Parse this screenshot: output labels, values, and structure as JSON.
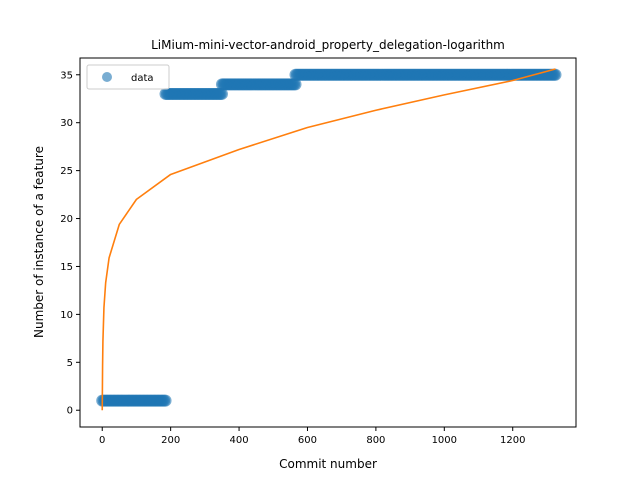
{
  "chart_data": {
    "type": "scatter",
    "title": "LiMium-mini-vector-android_property_delegation-logarithm",
    "xlabel": "Commit number",
    "ylabel": "Number of instance of a feature",
    "xlim": [
      -65,
      1385
    ],
    "ylim": [
      -1.75,
      36.75
    ],
    "xticks": [
      0,
      200,
      400,
      600,
      800,
      1000,
      1200
    ],
    "yticks": [
      0,
      5,
      10,
      15,
      20,
      25,
      30,
      35
    ],
    "grid": false,
    "legend": {
      "position": "top-left",
      "entries": [
        "data"
      ]
    },
    "colors": {
      "data": "#1f77b4",
      "fit": "#ff7f0e"
    },
    "series": [
      {
        "name": "data",
        "kind": "scatter",
        "segments": [
          {
            "x_start": 0,
            "x_end": 185,
            "y": 1
          },
          {
            "x_start": 185,
            "x_end": 350,
            "y": 33
          },
          {
            "x_start": 350,
            "x_end": 565,
            "y": 34
          },
          {
            "x_start": 565,
            "x_end": 1325,
            "y": 35
          }
        ]
      },
      {
        "kind": "line",
        "model": "logarithmic",
        "points": [
          [
            0,
            0
          ],
          [
            1,
            4.6
          ],
          [
            2,
            7.2
          ],
          [
            5,
            10.7
          ],
          [
            10,
            13.3
          ],
          [
            20,
            15.9
          ],
          [
            50,
            19.4
          ],
          [
            100,
            22.0
          ],
          [
            200,
            24.6
          ],
          [
            400,
            27.2
          ],
          [
            600,
            29.5
          ],
          [
            800,
            31.3
          ],
          [
            1000,
            32.9
          ],
          [
            1200,
            34.4
          ],
          [
            1325,
            35.6
          ]
        ]
      }
    ]
  }
}
